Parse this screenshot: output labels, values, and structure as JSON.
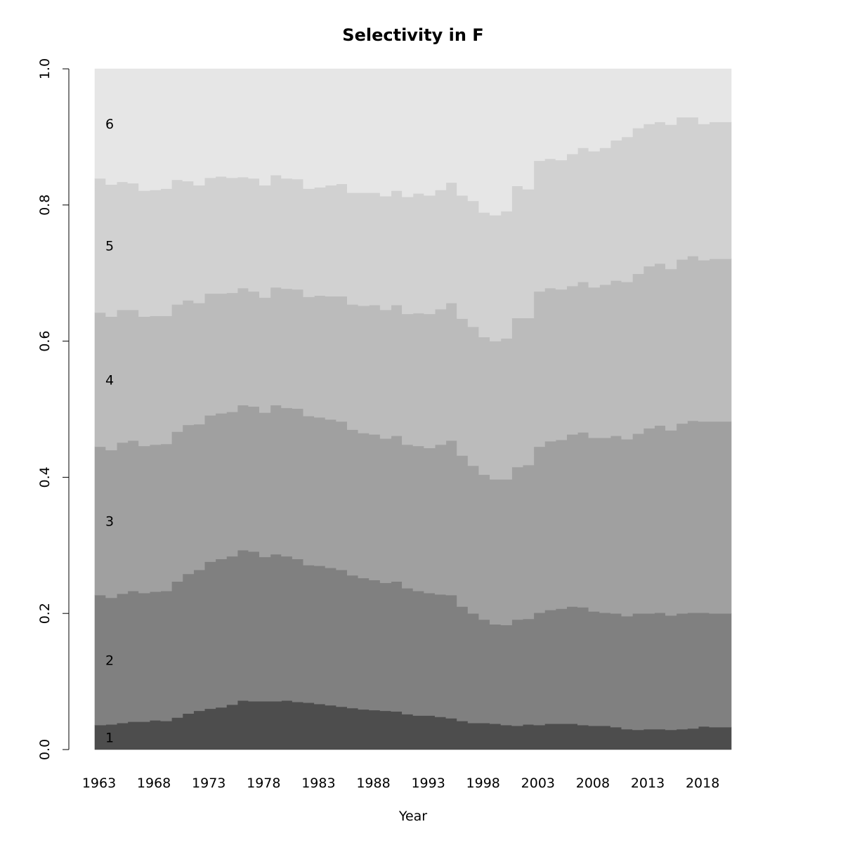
{
  "chart_data": {
    "type": "area",
    "title": "Selectivity in F",
    "xlabel": "Year",
    "ylabel": "",
    "ylim": [
      0,
      1
    ],
    "x_range": [
      1963,
      2021
    ],
    "x_ticks": [
      "1963",
      "1968",
      "1973",
      "1978",
      "1983",
      "1988",
      "1993",
      "1998",
      "2003",
      "2008",
      "2013",
      "2018"
    ],
    "y_ticks": [
      "0.0",
      "0.2",
      "0.4",
      "0.6",
      "0.8",
      "1.0"
    ],
    "stacked": true,
    "step": true,
    "years": [
      1963,
      1964,
      1965,
      1966,
      1967,
      1968,
      1969,
      1970,
      1971,
      1972,
      1973,
      1974,
      1975,
      1976,
      1977,
      1978,
      1979,
      1980,
      1981,
      1982,
      1983,
      1984,
      1985,
      1986,
      1987,
      1988,
      1989,
      1990,
      1991,
      1992,
      1993,
      1994,
      1995,
      1996,
      1997,
      1998,
      1999,
      2000,
      2001,
      2002,
      2003,
      2004,
      2005,
      2006,
      2007,
      2008,
      2009,
      2010,
      2011,
      2012,
      2013,
      2014,
      2015,
      2016,
      2017,
      2018,
      2019,
      2020
    ],
    "series": [
      {
        "name": "1",
        "color": "#4d4d4d",
        "cumulative": [
          0.036,
          0.037,
          0.039,
          0.041,
          0.041,
          0.043,
          0.042,
          0.047,
          0.053,
          0.057,
          0.06,
          0.062,
          0.066,
          0.072,
          0.071,
          0.071,
          0.071,
          0.072,
          0.07,
          0.069,
          0.067,
          0.065,
          0.063,
          0.061,
          0.059,
          0.058,
          0.057,
          0.056,
          0.052,
          0.05,
          0.05,
          0.048,
          0.046,
          0.042,
          0.039,
          0.039,
          0.038,
          0.036,
          0.035,
          0.037,
          0.036,
          0.038,
          0.038,
          0.038,
          0.036,
          0.035,
          0.035,
          0.033,
          0.03,
          0.029,
          0.03,
          0.03,
          0.029,
          0.03,
          0.031,
          0.034,
          0.033,
          0.033
        ]
      },
      {
        "name": "2",
        "color": "#808080",
        "cumulative": [
          0.227,
          0.223,
          0.229,
          0.233,
          0.23,
          0.232,
          0.233,
          0.247,
          0.258,
          0.264,
          0.276,
          0.28,
          0.284,
          0.293,
          0.291,
          0.283,
          0.287,
          0.284,
          0.28,
          0.271,
          0.27,
          0.267,
          0.264,
          0.256,
          0.252,
          0.249,
          0.245,
          0.247,
          0.237,
          0.233,
          0.23,
          0.228,
          0.227,
          0.21,
          0.2,
          0.191,
          0.184,
          0.183,
          0.191,
          0.192,
          0.201,
          0.205,
          0.207,
          0.21,
          0.209,
          0.203,
          0.201,
          0.2,
          0.196,
          0.2,
          0.2,
          0.201,
          0.197,
          0.2,
          0.201,
          0.201,
          0.2,
          0.2
        ]
      },
      {
        "name": "3",
        "color": "#a0a0a0",
        "cumulative": [
          0.445,
          0.44,
          0.451,
          0.454,
          0.446,
          0.448,
          0.449,
          0.467,
          0.477,
          0.478,
          0.491,
          0.494,
          0.496,
          0.506,
          0.504,
          0.495,
          0.506,
          0.502,
          0.501,
          0.49,
          0.488,
          0.485,
          0.482,
          0.47,
          0.465,
          0.463,
          0.457,
          0.461,
          0.448,
          0.446,
          0.443,
          0.448,
          0.454,
          0.432,
          0.417,
          0.404,
          0.397,
          0.397,
          0.415,
          0.418,
          0.445,
          0.453,
          0.455,
          0.463,
          0.466,
          0.458,
          0.458,
          0.461,
          0.456,
          0.464,
          0.472,
          0.476,
          0.469,
          0.479,
          0.483,
          0.482,
          0.482,
          0.482
        ]
      },
      {
        "name": "4",
        "color": "#bbbbbb",
        "cumulative": [
          0.642,
          0.636,
          0.646,
          0.646,
          0.636,
          0.637,
          0.637,
          0.654,
          0.66,
          0.656,
          0.67,
          0.67,
          0.671,
          0.678,
          0.673,
          0.664,
          0.679,
          0.677,
          0.676,
          0.665,
          0.667,
          0.666,
          0.666,
          0.654,
          0.652,
          0.653,
          0.646,
          0.653,
          0.64,
          0.641,
          0.64,
          0.647,
          0.656,
          0.633,
          0.621,
          0.606,
          0.6,
          0.604,
          0.634,
          0.634,
          0.673,
          0.678,
          0.676,
          0.681,
          0.687,
          0.679,
          0.683,
          0.689,
          0.687,
          0.699,
          0.71,
          0.714,
          0.706,
          0.72,
          0.725,
          0.719,
          0.721,
          0.721
        ]
      },
      {
        "name": "5",
        "color": "#d1d1d1",
        "cumulative": [
          0.839,
          0.83,
          0.834,
          0.832,
          0.821,
          0.822,
          0.824,
          0.837,
          0.835,
          0.829,
          0.84,
          0.842,
          0.84,
          0.841,
          0.839,
          0.829,
          0.844,
          0.839,
          0.838,
          0.824,
          0.826,
          0.829,
          0.831,
          0.818,
          0.818,
          0.818,
          0.813,
          0.821,
          0.812,
          0.817,
          0.814,
          0.822,
          0.833,
          0.814,
          0.806,
          0.789,
          0.785,
          0.791,
          0.828,
          0.823,
          0.865,
          0.868,
          0.866,
          0.875,
          0.884,
          0.879,
          0.884,
          0.895,
          0.9,
          0.913,
          0.919,
          0.922,
          0.918,
          0.929,
          0.929,
          0.919,
          0.922,
          0.922
        ]
      },
      {
        "name": "6",
        "color": "#e6e6e6",
        "cumulative": [
          1,
          1,
          1,
          1,
          1,
          1,
          1,
          1,
          1,
          1,
          1,
          1,
          1,
          1,
          1,
          1,
          1,
          1,
          1,
          1,
          1,
          1,
          1,
          1,
          1,
          1,
          1,
          1,
          1,
          1,
          1,
          1,
          1,
          1,
          1,
          1,
          1,
          1,
          1,
          1,
          1,
          1,
          1,
          1,
          1,
          1,
          1,
          1,
          1,
          1,
          1,
          1,
          1,
          1,
          1,
          1,
          1,
          1
        ]
      }
    ],
    "grid": false,
    "legend": "none"
  }
}
